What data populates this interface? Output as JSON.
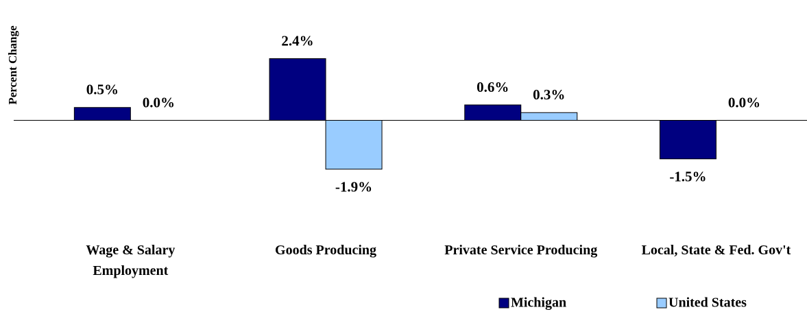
{
  "chart_data": {
    "type": "bar",
    "y_label": "Percent Change",
    "categories": [
      "Wage & Salary Employment",
      "Goods Producing",
      "Private Service Producing",
      "Local, State & Fed. Gov't"
    ],
    "series": [
      {
        "name": "Michigan",
        "color": "#000080",
        "values": [
          0.5,
          2.4,
          0.6,
          -1.5
        ],
        "value_labels": [
          "0.5%",
          "2.4%",
          "0.6%",
          "-1.5%"
        ]
      },
      {
        "name": "United States",
        "color": "#99ccff",
        "values": [
          0.0,
          -1.9,
          0.3,
          0.0
        ],
        "value_labels": [
          "0.0%",
          "-1.9%",
          "0.3%",
          "0.0%"
        ]
      }
    ],
    "ylim": [
      -3,
      3
    ],
    "legend": "bottom-right"
  }
}
